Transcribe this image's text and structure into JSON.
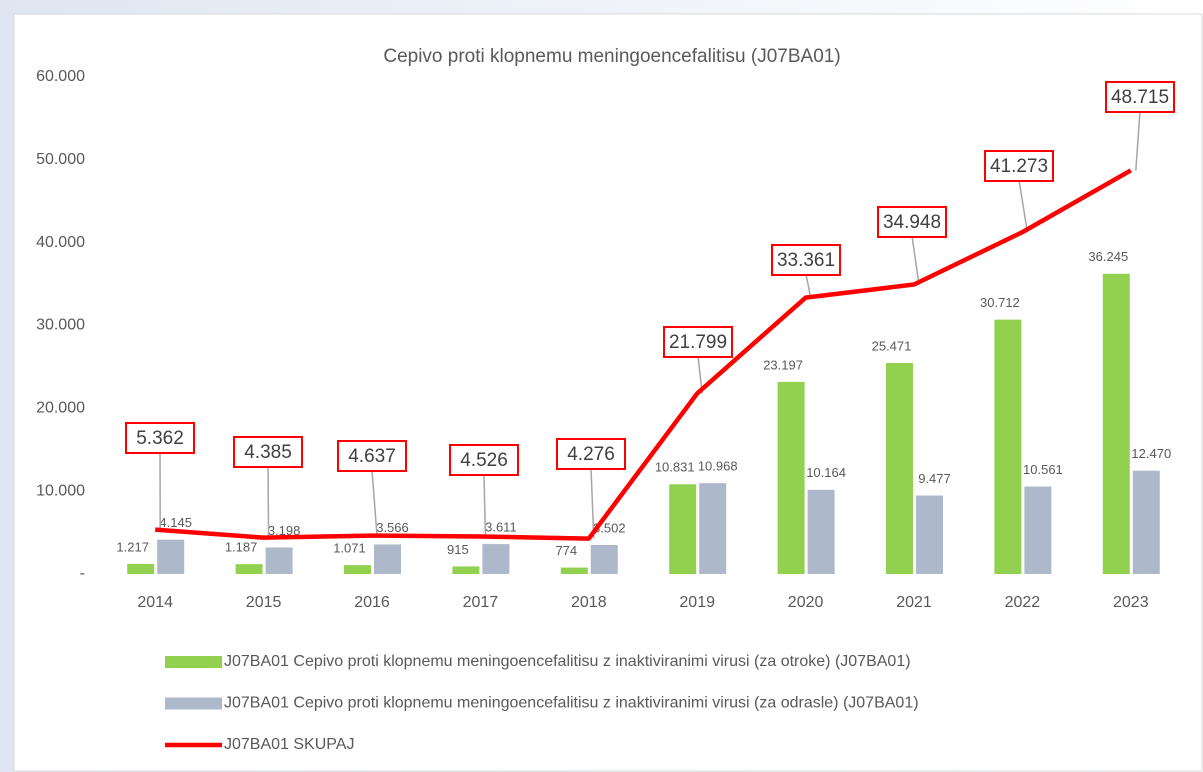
{
  "chart_data": {
    "type": "bar",
    "title": "Cepivo proti klopnemu meningoencefalitisu (J07BA01)",
    "categories": [
      "2014",
      "2015",
      "2016",
      "2017",
      "2018",
      "2019",
      "2020",
      "2021",
      "2022",
      "2023"
    ],
    "series": [
      {
        "name": "J07BA01 Cepivo proti klopnemu meningoencefalitisu z inaktiviranimi virusi (za otroke) (J07BA01)",
        "type": "bar",
        "color": "#92d050",
        "values": [
          1217,
          1187,
          1071,
          915,
          774,
          10831,
          23197,
          25471,
          30712,
          36245
        ],
        "value_labels": [
          "1.217",
          "1.187",
          "1.071",
          "915",
          "774",
          "10.831",
          "23.197",
          "25.471",
          "30.712",
          "36.245"
        ]
      },
      {
        "name": "J07BA01 Cepivo proti klopnemu meningoencefalitisu z inaktiviranimi virusi (za odrasle) (J07BA01)",
        "type": "bar",
        "color": "#adb9ca",
        "values": [
          4145,
          3198,
          3566,
          3611,
          3502,
          10968,
          10164,
          9477,
          10561,
          12470
        ],
        "value_labels": [
          "4.145",
          "3.198",
          "3.566",
          "3.611",
          "3.502",
          "10.968",
          "10.164",
          "9.477",
          "10.561",
          "12.470"
        ]
      },
      {
        "name": "J07BA01 SKUPAJ",
        "type": "line",
        "color": "#ff0000",
        "values": [
          5362,
          4385,
          4637,
          4526,
          4276,
          21799,
          33361,
          34948,
          41273,
          48715
        ],
        "value_labels": [
          "5.362",
          "4.385",
          "4.637",
          "4.526",
          "4.276",
          "21.799",
          "33.361",
          "34.948",
          "41.273",
          "48.715"
        ]
      }
    ],
    "ylim": [
      0,
      60000
    ],
    "yticks": [
      {
        "value": 0,
        "label": "-"
      },
      {
        "value": 10000,
        "label": "10.000"
      },
      {
        "value": 20000,
        "label": "20.000"
      },
      {
        "value": 30000,
        "label": "30.000"
      },
      {
        "value": 40000,
        "label": "40.000"
      },
      {
        "value": 50000,
        "label": "50.000"
      },
      {
        "value": 60000,
        "label": "60.000"
      }
    ],
    "grid": false,
    "legend": "bottom"
  }
}
